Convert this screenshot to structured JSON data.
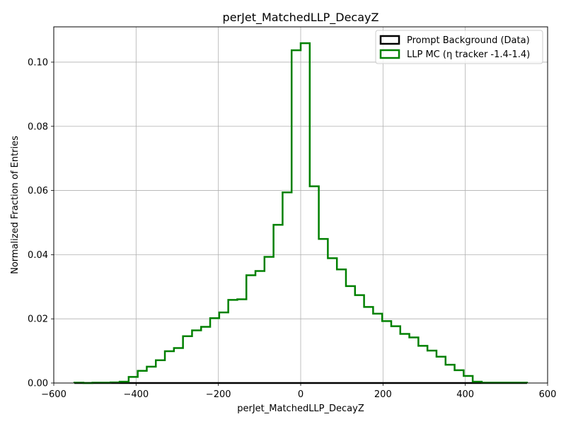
{
  "chart_data": {
    "type": "histogram",
    "title": "perJet_MatchedLLP_DecayZ",
    "xlabel": "perJet_MatchedLLP_DecayZ",
    "ylabel": "Normalized Fraction of Entries",
    "xlim": [
      -600,
      600
    ],
    "ylim": [
      0,
      0.111
    ],
    "xticks": [
      -600,
      -400,
      -200,
      0,
      200,
      400,
      600
    ],
    "yticks": [
      0.0,
      0.02,
      0.04,
      0.06,
      0.08,
      0.1
    ],
    "xtick_labels": [
      "−600",
      "−400",
      "−200",
      "0",
      "200",
      "400",
      "600"
    ],
    "ytick_labels": [
      "0.00",
      "0.02",
      "0.04",
      "0.06",
      "0.08",
      "0.10"
    ],
    "grid": true,
    "legend_position": "upper right",
    "bin_edges": [
      -550,
      -528,
      -506,
      -484,
      -462,
      -440,
      -418,
      -396,
      -374,
      -352,
      -330,
      -308,
      -286,
      -264,
      -242,
      -220,
      -198,
      -176,
      -154,
      -132,
      -110,
      -88,
      -66,
      -44,
      -22,
      0,
      22,
      44,
      66,
      88,
      110,
      132,
      154,
      176,
      198,
      220,
      242,
      264,
      286,
      308,
      330,
      352,
      374,
      396,
      418,
      440,
      462,
      484,
      506,
      528,
      550
    ],
    "series": [
      {
        "name": "Prompt Background (Data)",
        "color": "#000000",
        "values": [
          0,
          0,
          0,
          0,
          0,
          0,
          0,
          0,
          0,
          0,
          0,
          0,
          0,
          0,
          0,
          0,
          0,
          0,
          0,
          0,
          0,
          0,
          0,
          0,
          0,
          0,
          0,
          0,
          0,
          0,
          0,
          0,
          0,
          0,
          0,
          0,
          0,
          0,
          0,
          0,
          0,
          0,
          0,
          0,
          0,
          0,
          0,
          0,
          0,
          0
        ]
      },
      {
        "name": "LLP MC (η tracker -1.4-1.4)",
        "color": "#008000",
        "values": [
          0.0001,
          0.0,
          0.0001,
          0.0001,
          0.0002,
          0.0004,
          0.0019,
          0.0038,
          0.0051,
          0.0071,
          0.0099,
          0.0109,
          0.0146,
          0.0164,
          0.0175,
          0.0202,
          0.022,
          0.0259,
          0.0261,
          0.0336,
          0.0349,
          0.0393,
          0.0493,
          0.0594,
          0.1037,
          0.1059,
          0.0613,
          0.0449,
          0.0389,
          0.0354,
          0.0302,
          0.0274,
          0.0237,
          0.0216,
          0.0193,
          0.0177,
          0.0153,
          0.0142,
          0.0116,
          0.0101,
          0.0082,
          0.0057,
          0.004,
          0.0022,
          0.0004,
          0.0001,
          0.0001,
          0.0001,
          0.0001,
          0.0001
        ]
      }
    ]
  }
}
